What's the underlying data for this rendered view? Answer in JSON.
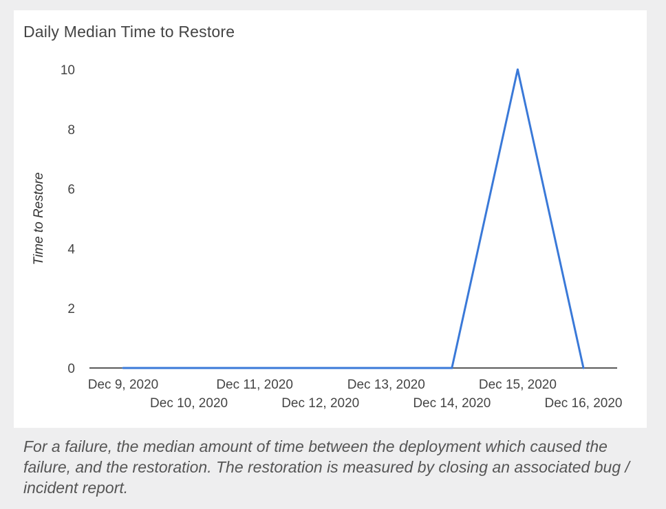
{
  "chart_title": "Daily Median Time to Restore",
  "caption": "For a failure, the median amount of time between the deployment which caused the failure, and the restoration. The restoration is measured by closing an associated bug / incident report.",
  "colors": {
    "line": "#3a79d8",
    "axis": "#222222",
    "text": "#444444",
    "background": "#eeeeef",
    "card": "#ffffff"
  },
  "chart_data": {
    "type": "line",
    "title": "Daily Median Time to Restore",
    "xlabel": "",
    "ylabel": "Time to Restore",
    "ylim": [
      0,
      10
    ],
    "yticks": [
      0,
      2,
      4,
      6,
      8,
      10
    ],
    "grid": false,
    "legend": "none",
    "categories": [
      "Dec 9, 2020",
      "Dec 10, 2020",
      "Dec 11, 2020",
      "Dec 12, 2020",
      "Dec 13, 2020",
      "Dec 14, 2020",
      "Dec 15, 2020",
      "Dec 16, 2020"
    ],
    "series": [
      {
        "values": [
          0,
          0,
          0,
          0,
          0,
          0,
          10,
          0
        ]
      }
    ]
  }
}
